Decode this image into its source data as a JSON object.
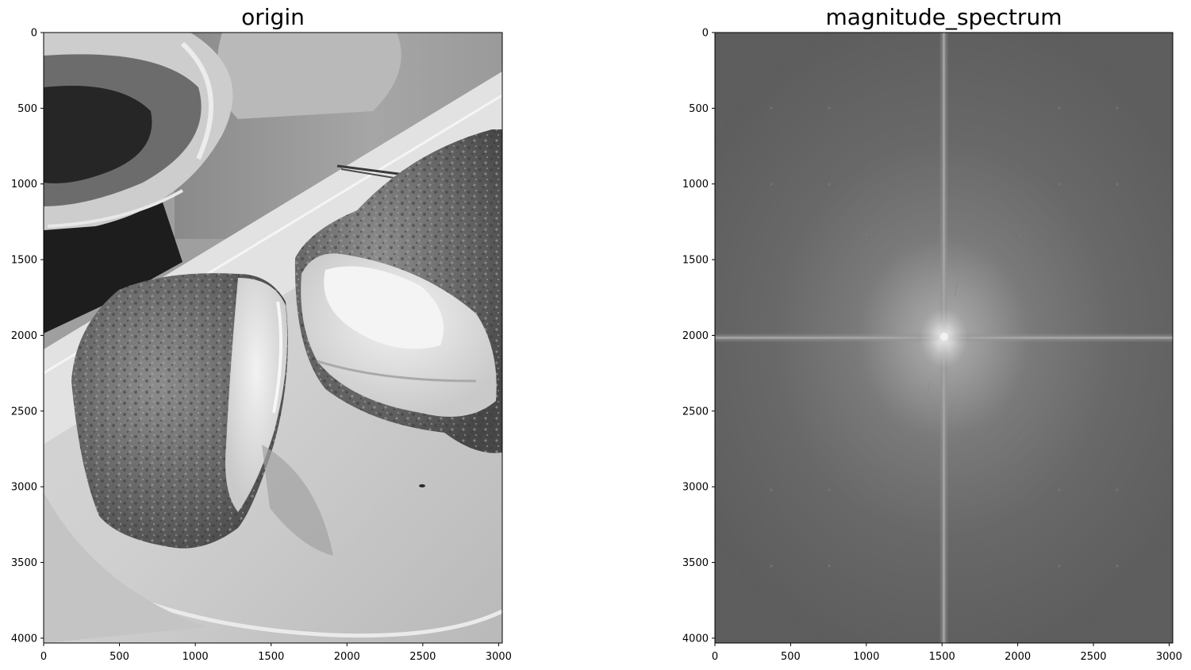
{
  "chart_data": [
    {
      "type": "image",
      "title": "origin",
      "image_kind": "grayscale photograph of a cut cream-filled pastry on a plate",
      "x_ticks": [
        0,
        500,
        1000,
        1500,
        2000,
        2500,
        3000
      ],
      "y_ticks": [
        0,
        500,
        1000,
        1500,
        2000,
        2500,
        3000,
        3500,
        4000
      ],
      "xlim": [
        0,
        3024
      ],
      "ylim": [
        4032,
        0
      ],
      "colormap": "gray"
    },
    {
      "type": "image",
      "title": "magnitude_spectrum",
      "image_kind": "FFT magnitude spectrum (log scale), bright cross through the center",
      "x_ticks": [
        0,
        500,
        1000,
        1500,
        2000,
        2500,
        3000
      ],
      "y_ticks": [
        0,
        500,
        1000,
        1500,
        2000,
        2500,
        3000,
        3500,
        4000
      ],
      "xlim": [
        0,
        3024
      ],
      "ylim": [
        4032,
        0
      ],
      "colormap": "gray",
      "center": [
        1512,
        2016
      ]
    }
  ]
}
